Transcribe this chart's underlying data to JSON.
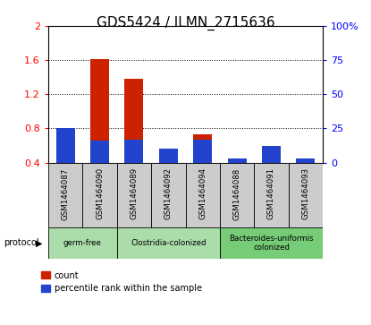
{
  "title": "GDS5424 / ILMN_2715636",
  "samples": [
    "GSM1464087",
    "GSM1464090",
    "GSM1464089",
    "GSM1464092",
    "GSM1464094",
    "GSM1464088",
    "GSM1464091",
    "GSM1464093"
  ],
  "red_values": [
    0.79,
    1.61,
    1.38,
    0.42,
    0.73,
    0.02,
    0.42,
    0.02
  ],
  "blue_pct": [
    25,
    16,
    17,
    10,
    17,
    3,
    12,
    3
  ],
  "ylim_left": [
    0.4,
    2.0
  ],
  "ylim_right": [
    0,
    100
  ],
  "yticks_left": [
    0.4,
    0.8,
    1.2,
    1.6,
    2.0
  ],
  "ytick_labels_left": [
    "0.4",
    "0.8",
    "1.2",
    "1.6",
    "2"
  ],
  "yticks_right": [
    0,
    25,
    50,
    75,
    100
  ],
  "ytick_labels_right": [
    "0",
    "25",
    "50",
    "75",
    "100%"
  ],
  "protocols": [
    {
      "label": "germ-free",
      "start": 0,
      "end": 2,
      "color": "#aaddaa"
    },
    {
      "label": "Clostridia-colonized",
      "start": 2,
      "end": 5,
      "color": "#aaddaa"
    },
    {
      "label": "Bacteroides-uniformis\ncolonized",
      "start": 5,
      "end": 8,
      "color": "#77cc77"
    }
  ],
  "protocol_label": "protocol",
  "legend_red": "count",
  "legend_blue": "percentile rank within the sample",
  "red_color": "#CC2200",
  "blue_color": "#2244CC",
  "title_fontsize": 11,
  "sample_box_color": "#CCCCCC",
  "bar_width": 0.55
}
